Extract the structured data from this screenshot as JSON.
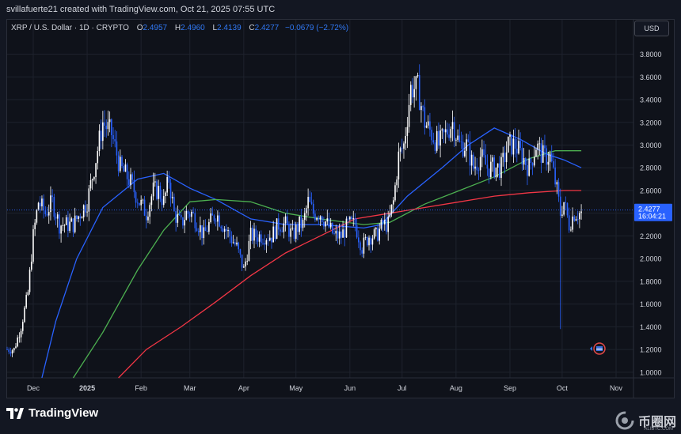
{
  "header": {
    "credit": "svillafuerte21 created with TradingView.com, Oct 21, 2025 07:55 UTC"
  },
  "legend": {
    "symbol": "XRP / U.S. Dollar · 1D · CRYPTO",
    "o_label": "O",
    "o_value": "2.4957",
    "h_label": "H",
    "h_value": "2.4960",
    "l_label": "L",
    "l_value": "2.4139",
    "c_label": "C",
    "c_value": "2.4277",
    "change": "−0.0679 (−2.72%)"
  },
  "currency_button": "USD",
  "price_tag": {
    "price": "2.4277",
    "countdown": "16:04:21"
  },
  "footer": {
    "brand": "TradingView"
  },
  "watermark": {
    "name": "币圈网",
    "sub": "ALIBTC.COM"
  },
  "colors": {
    "candle": "#ffffff",
    "candle_down": "#2962ff",
    "ma_short": "#2962ff",
    "ma_mid": "#4caf50",
    "ma_long": "#f23645",
    "price_tag": "#2962ff"
  },
  "icons": [
    "tradingview-logo-icon",
    "flag-event-icon",
    "watermark-icon"
  ],
  "chart_data": {
    "type": "candlestick",
    "title": "",
    "xlabel": "",
    "ylabel": "",
    "ylim": [
      0.95,
      3.95
    ],
    "y_ticks": [
      "3.8000",
      "3.6000",
      "3.4000",
      "3.2000",
      "3.0000",
      "2.8000",
      "2.6000",
      "2.4000",
      "2.2000",
      "2.0000",
      "1.8000",
      "1.6000",
      "1.4000",
      "1.2000",
      "1.0000"
    ],
    "x_ticks": [
      "Dec",
      "2025",
      "Feb",
      "Mar",
      "Apr",
      "May",
      "Jun",
      "Jul",
      "Aug",
      "Sep",
      "Oct",
      "Nov"
    ],
    "x_tick_day_index": [
      15,
      46,
      77,
      105,
      136,
      166,
      197,
      227,
      258,
      289,
      319,
      350
    ],
    "grid": true,
    "legend": "none",
    "series_anchors": {
      "price": [
        [
          0,
          1.2
        ],
        [
          4,
          1.2
        ],
        [
          8,
          1.4
        ],
        [
          12,
          1.7
        ],
        [
          15,
          2.2
        ],
        [
          18,
          2.5
        ],
        [
          22,
          2.4
        ],
        [
          26,
          2.5
        ],
        [
          30,
          2.3
        ],
        [
          34,
          2.3
        ],
        [
          38,
          2.3
        ],
        [
          42,
          2.4
        ],
        [
          46,
          2.5
        ],
        [
          50,
          2.8
        ],
        [
          55,
          3.2
        ],
        [
          60,
          3.1
        ],
        [
          65,
          2.8
        ],
        [
          70,
          2.7
        ],
        [
          73,
          2.6
        ],
        [
          76,
          2.5
        ],
        [
          80,
          2.4
        ],
        [
          84,
          2.6
        ],
        [
          87,
          2.6
        ],
        [
          90,
          2.5
        ],
        [
          93,
          2.7
        ],
        [
          96,
          2.4
        ],
        [
          100,
          2.3
        ],
        [
          103,
          2.4
        ],
        [
          106,
          2.4
        ],
        [
          110,
          2.3
        ],
        [
          113,
          2.2
        ],
        [
          116,
          2.3
        ],
        [
          120,
          2.4
        ],
        [
          124,
          2.3
        ],
        [
          128,
          2.2
        ],
        [
          132,
          2.1
        ],
        [
          136,
          1.9
        ],
        [
          140,
          2.2
        ],
        [
          144,
          2.2
        ],
        [
          148,
          2.2
        ],
        [
          152,
          2.2
        ],
        [
          156,
          2.3
        ],
        [
          160,
          2.3
        ],
        [
          164,
          2.2
        ],
        [
          168,
          2.3
        ],
        [
          170,
          2.3
        ],
        [
          173,
          2.5
        ],
        [
          176,
          2.4
        ],
        [
          180,
          2.4
        ],
        [
          184,
          2.3
        ],
        [
          188,
          2.2
        ],
        [
          192,
          2.2
        ],
        [
          196,
          2.3
        ],
        [
          200,
          2.3
        ],
        [
          204,
          2.1
        ],
        [
          208,
          2.2
        ],
        [
          212,
          2.2
        ],
        [
          216,
          2.3
        ],
        [
          219,
          2.3
        ],
        [
          222,
          2.5
        ],
        [
          225,
          2.9
        ],
        [
          228,
          3.0
        ],
        [
          232,
          3.5
        ],
        [
          236,
          3.5
        ],
        [
          240,
          3.2
        ],
        [
          244,
          3.1
        ],
        [
          248,
          3.0
        ],
        [
          252,
          3.1
        ],
        [
          256,
          3.2
        ],
        [
          260,
          3.0
        ],
        [
          264,
          3.0
        ],
        [
          268,
          2.8
        ],
        [
          272,
          2.9
        ],
        [
          276,
          2.8
        ],
        [
          280,
          2.8
        ],
        [
          284,
          2.8
        ],
        [
          288,
          3.0
        ],
        [
          292,
          3.0
        ],
        [
          296,
          2.9
        ],
        [
          300,
          2.8
        ],
        [
          304,
          3.0
        ],
        [
          308,
          2.9
        ],
        [
          312,
          2.9
        ],
        [
          316,
          2.6
        ],
        [
          318,
          2.4
        ],
        [
          320,
          2.5
        ],
        [
          323,
          2.3
        ],
        [
          326,
          2.4
        ],
        [
          330,
          2.4
        ]
      ],
      "crash_wick": {
        "day": 318,
        "low": 1.38
      },
      "ma_short": [
        [
          20,
          0.95
        ],
        [
          28,
          1.45
        ],
        [
          40,
          2.0
        ],
        [
          55,
          2.45
        ],
        [
          75,
          2.7
        ],
        [
          90,
          2.75
        ],
        [
          105,
          2.62
        ],
        [
          120,
          2.52
        ],
        [
          140,
          2.35
        ],
        [
          160,
          2.3
        ],
        [
          180,
          2.3
        ],
        [
          205,
          2.27
        ],
        [
          215,
          2.3
        ],
        [
          230,
          2.55
        ],
        [
          250,
          2.8
        ],
        [
          265,
          3.0
        ],
        [
          280,
          3.15
        ],
        [
          295,
          3.05
        ],
        [
          310,
          2.92
        ],
        [
          320,
          2.87
        ],
        [
          330,
          2.8
        ]
      ],
      "ma_mid": [
        [
          38,
          0.95
        ],
        [
          55,
          1.35
        ],
        [
          75,
          1.9
        ],
        [
          90,
          2.25
        ],
        [
          105,
          2.5
        ],
        [
          120,
          2.52
        ],
        [
          140,
          2.5
        ],
        [
          160,
          2.4
        ],
        [
          180,
          2.35
        ],
        [
          205,
          2.3
        ],
        [
          220,
          2.32
        ],
        [
          240,
          2.48
        ],
        [
          260,
          2.6
        ],
        [
          280,
          2.72
        ],
        [
          300,
          2.88
        ],
        [
          315,
          2.95
        ],
        [
          330,
          2.95
        ]
      ],
      "ma_long": [
        [
          64,
          0.95
        ],
        [
          80,
          1.2
        ],
        [
          100,
          1.4
        ],
        [
          120,
          1.62
        ],
        [
          140,
          1.85
        ],
        [
          160,
          2.05
        ],
        [
          180,
          2.2
        ],
        [
          200,
          2.35
        ],
        [
          220,
          2.4
        ],
        [
          240,
          2.45
        ],
        [
          260,
          2.5
        ],
        [
          280,
          2.55
        ],
        [
          300,
          2.58
        ],
        [
          320,
          2.6
        ],
        [
          330,
          2.6
        ]
      ]
    },
    "last_price": 2.4277
  }
}
